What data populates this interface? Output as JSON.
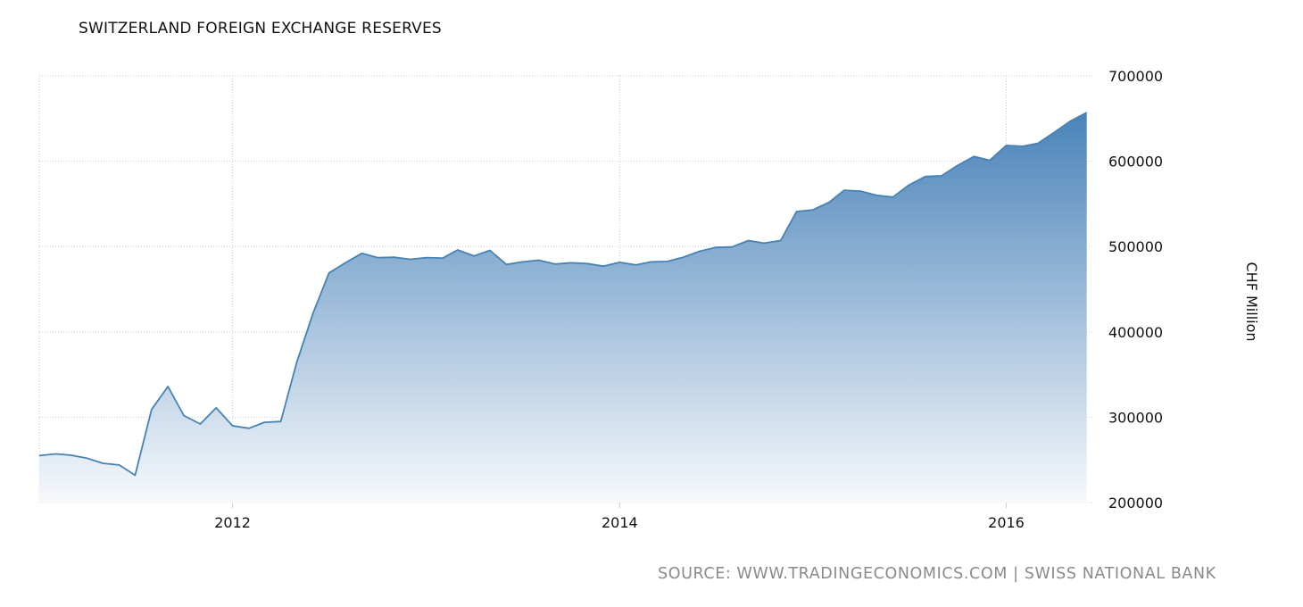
{
  "chart_data": {
    "type": "area",
    "title": "SWITZERLAND FOREIGN EXCHANGE RESERVES",
    "ylabel": "CHF Million",
    "xlabel": "",
    "ylim": [
      200000,
      700000
    ],
    "xlim": [
      "2011-01-01",
      "2016-06-15"
    ],
    "y_ticks": [
      200000,
      300000,
      400000,
      500000,
      600000,
      700000
    ],
    "y_tick_labels": [
      "200000",
      "300000",
      "400000",
      "500000",
      "600000",
      "700000"
    ],
    "x_ticks": [
      "2012-01-01",
      "2014-01-01",
      "2016-01-01"
    ],
    "x_tick_labels": [
      "2012",
      "2014",
      "2016"
    ],
    "x_gridlines": [
      "2011-01-01",
      "2012-01-01",
      "2014-01-01",
      "2016-01-01"
    ],
    "grid": true,
    "legend": "none",
    "y_axis_side": "right",
    "line_color": "#4682b4",
    "fill_top_color": "#4a83b9",
    "fill_bottom_color": "#f7f9fc",
    "x": [
      "2011-01",
      "2011-02",
      "2011-03",
      "2011-04",
      "2011-05",
      "2011-06",
      "2011-07",
      "2011-08",
      "2011-09",
      "2011-10",
      "2011-11",
      "2011-12",
      "2012-01",
      "2012-02",
      "2012-03",
      "2012-04",
      "2012-05",
      "2012-06",
      "2012-07",
      "2012-08",
      "2012-09",
      "2012-10",
      "2012-11",
      "2012-12",
      "2013-01",
      "2013-02",
      "2013-03",
      "2013-04",
      "2013-05",
      "2013-06",
      "2013-07",
      "2013-08",
      "2013-09",
      "2013-10",
      "2013-11",
      "2013-12",
      "2014-01",
      "2014-02",
      "2014-03",
      "2014-04",
      "2014-05",
      "2014-06",
      "2014-07",
      "2014-08",
      "2014-09",
      "2014-10",
      "2014-11",
      "2014-12",
      "2015-01",
      "2015-02",
      "2015-03",
      "2015-04",
      "2015-05",
      "2015-06",
      "2015-07",
      "2015-08",
      "2015-09",
      "2015-10",
      "2015-11",
      "2015-12",
      "2016-01",
      "2016-02",
      "2016-03",
      "2016-04",
      "2016-05",
      "2016-06"
    ],
    "values": [
      255000,
      257000,
      255500,
      252000,
      246000,
      244000,
      232000,
      309000,
      336000,
      302000,
      292000,
      311000,
      290000,
      287000,
      294000,
      295000,
      364000,
      422000,
      469000,
      481000,
      492000,
      487000,
      487500,
      485000,
      487000,
      486500,
      496000,
      489000,
      495500,
      479000,
      482000,
      484000,
      479500,
      481000,
      480000,
      477000,
      481500,
      478500,
      482000,
      482500,
      487500,
      494500,
      499000,
      499500,
      507000,
      504000,
      507000,
      541000,
      543000,
      552000,
      566000,
      565000,
      560000,
      558000,
      572000,
      582000,
      583000,
      595000,
      605500,
      601000,
      618500,
      617500,
      621000,
      634000,
      647000,
      657000
    ]
  },
  "source": "SOURCE: WWW.TRADINGECONOMICS.COM | SWISS NATIONAL BANK"
}
